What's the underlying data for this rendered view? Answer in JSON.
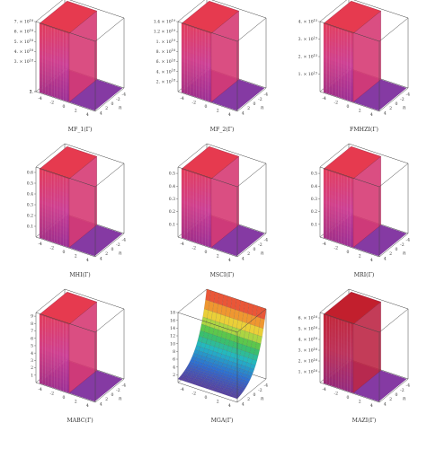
{
  "chart_data": [
    {
      "type": "surface3d",
      "caption": "MF_1(Γ)",
      "surface": "wall",
      "ztick_labels": [
        "1.",
        "2.",
        "3. × 10^{18}",
        "4. × 10^{18}",
        "5. × 10^{18}",
        "6. × 10^{18}",
        "7. × 10^{18}"
      ],
      "xtick_labels": [
        "-4",
        "-2",
        "0",
        "2",
        "4"
      ],
      "ytick_labels": [
        "4",
        "2",
        "0",
        "-2",
        "-4"
      ],
      "ylabel": "n",
      "zlim": [
        0,
        7e+18
      ],
      "colors": [
        "#7b2a9c",
        "#c83c9a",
        "#e63a4f"
      ]
    },
    {
      "type": "surface3d",
      "caption": "MF_2(Γ)",
      "surface": "wall",
      "ztick_labels": [
        "2. × 10^{18}",
        "4. × 10^{18}",
        "6. × 10^{18}",
        "8. × 10^{18}",
        "1. × 10^{19}",
        "1.2 × 10^{19}",
        "1.4 × 10^{19}"
      ],
      "xtick_labels": [
        "-4",
        "-2",
        "0",
        "2",
        "4"
      ],
      "ytick_labels": [
        "4",
        "2",
        "0",
        "-2",
        "-4"
      ],
      "ylabel": "n",
      "zlim": [
        0,
        1.4e+19
      ],
      "colors": [
        "#7b2a9c",
        "#c83c9a",
        "#e63a4f"
      ]
    },
    {
      "type": "surface3d",
      "caption": "FMHZI(Γ)",
      "surface": "wall",
      "ztick_labels": [
        "1. × 10^{15}",
        "2. × 10^{15}",
        "3. × 10^{15}",
        "4. × 10^{15}"
      ],
      "xtick_labels": [
        "-4",
        "-2",
        "0",
        "2",
        "4"
      ],
      "ytick_labels": [
        "4",
        "2",
        "0",
        "-2",
        "-4"
      ],
      "ylabel": "n",
      "zlim": [
        0,
        4000000000000000.0
      ],
      "colors": [
        "#7b2a9c",
        "#c83c9a",
        "#e63a4f"
      ]
    },
    {
      "type": "surface3d",
      "caption": "MHI(Γ)",
      "surface": "wall",
      "ztick_labels": [
        "0.1",
        "0.2",
        "0.3",
        "0.4",
        "0.5",
        "0.6"
      ],
      "xtick_labels": [
        "-4",
        "-2",
        "0",
        "2",
        "4"
      ],
      "ytick_labels": [
        "4",
        "2",
        "0",
        "-2",
        "-4"
      ],
      "ylabel": "n",
      "zlim": [
        0,
        0.65
      ],
      "colors": [
        "#7b2a9c",
        "#c83c9a",
        "#e63a4f"
      ]
    },
    {
      "type": "surface3d",
      "caption": "MSCI(Γ)",
      "surface": "wall",
      "ztick_labels": [
        "0.1",
        "0.2",
        "0.3",
        "0.4",
        "0.5"
      ],
      "xtick_labels": [
        "-4",
        "-2",
        "0",
        "2",
        "4"
      ],
      "ytick_labels": [
        "4",
        "2",
        "0",
        "-2",
        "-4"
      ],
      "ylabel": "n",
      "zlim": [
        0,
        0.55
      ],
      "colors": [
        "#7b2a9c",
        "#c83c9a",
        "#e63a4f"
      ]
    },
    {
      "type": "surface3d",
      "caption": "MRI(Γ)",
      "surface": "wall",
      "ztick_labels": [
        "0.1",
        "0.2",
        "0.3",
        "0.4",
        "0.5"
      ],
      "xtick_labels": [
        "-4",
        "-2",
        "0",
        "2",
        "4"
      ],
      "ytick_labels": [
        "4",
        "2",
        "0",
        "-2",
        "-4"
      ],
      "ylabel": "n",
      "zlim": [
        0,
        0.55
      ],
      "colors": [
        "#7b2a9c",
        "#c83c9a",
        "#e63a4f"
      ]
    },
    {
      "type": "surface3d",
      "caption": "MABC(Γ)",
      "surface": "wall",
      "ztick_labels": [
        "1",
        "2",
        "3",
        "4",
        "5",
        "6",
        "7",
        "8",
        "9"
      ],
      "xtick_labels": [
        "-4",
        "-2",
        "0",
        "2",
        "4"
      ],
      "ytick_labels": [
        "4",
        "2",
        "0",
        "-2",
        "-4"
      ],
      "ylabel": "n",
      "zlim": [
        0,
        9.5
      ],
      "colors": [
        "#7b2a9c",
        "#c83c9a",
        "#e63a4f"
      ]
    },
    {
      "type": "surface3d",
      "caption": "MGA(Γ)",
      "surface": "exponential",
      "ztick_labels": [
        "2",
        "4",
        "6",
        "8",
        "10",
        "12",
        "14",
        "16",
        "18"
      ],
      "xtick_labels": [
        "-4",
        "-2",
        "0",
        "2",
        "4"
      ],
      "ytick_labels": [
        "4",
        "2",
        "0",
        "-2",
        "-4"
      ],
      "ylabel": "n",
      "zlim": [
        0,
        18
      ],
      "colors": [
        "#6a2c8f",
        "#2e6fd1",
        "#22b8c4",
        "#42c24f",
        "#e8e03a",
        "#f08a2e",
        "#e6333d"
      ]
    },
    {
      "type": "surface3d",
      "caption": "MAZI(Γ)",
      "surface": "wall",
      "ztick_labels": [
        "1. × 10^{16}",
        "2. × 10^{16}",
        "3. × 10^{16}",
        "4. × 10^{16}",
        "5. × 10^{16}",
        "6. × 10^{16}"
      ],
      "xtick_labels": [
        "-4",
        "-2",
        "0",
        "2",
        "4"
      ],
      "ytick_labels": [
        "4",
        "2",
        "0",
        "-2",
        "-4"
      ],
      "ylabel": "n",
      "zlim": [
        0,
        6.5e+16
      ],
      "colors": [
        "#7b2a9c",
        "#b8305f",
        "#c21f2d"
      ]
    }
  ]
}
